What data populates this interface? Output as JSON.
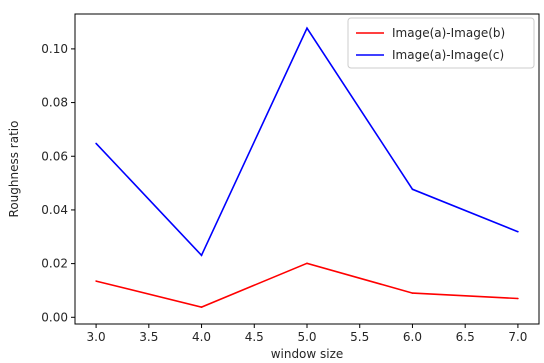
{
  "chart_data": {
    "type": "line",
    "xlabel": "window size",
    "ylabel": "Roughness ratio",
    "xlim": [
      2.8,
      7.2
    ],
    "ylim": [
      -0.0025,
      0.113
    ],
    "xticks": [
      3.0,
      3.5,
      4.0,
      4.5,
      5.0,
      5.5,
      6.0,
      6.5,
      7.0
    ],
    "xtick_labels": [
      "3.0",
      "3.5",
      "4.0",
      "4.5",
      "5.0",
      "5.5",
      "6.0",
      "6.5",
      "7.0"
    ],
    "yticks": [
      0.0,
      0.02,
      0.04,
      0.06,
      0.08,
      0.1
    ],
    "ytick_labels": [
      "0.00",
      "0.02",
      "0.04",
      "0.06",
      "0.08",
      "0.10"
    ],
    "grid": false,
    "legend_position": "top-right",
    "x": [
      3,
      4,
      5,
      6,
      7
    ],
    "series": [
      {
        "name": "Image(a)-Image(b)",
        "color": "#ff0000",
        "values": [
          0.0135,
          0.0038,
          0.0201,
          0.009,
          0.007
        ]
      },
      {
        "name": "Image(a)-Image(c)",
        "color": "#0000ff",
        "values": [
          0.0648,
          0.0231,
          0.1077,
          0.0477,
          0.0319
        ]
      }
    ]
  }
}
